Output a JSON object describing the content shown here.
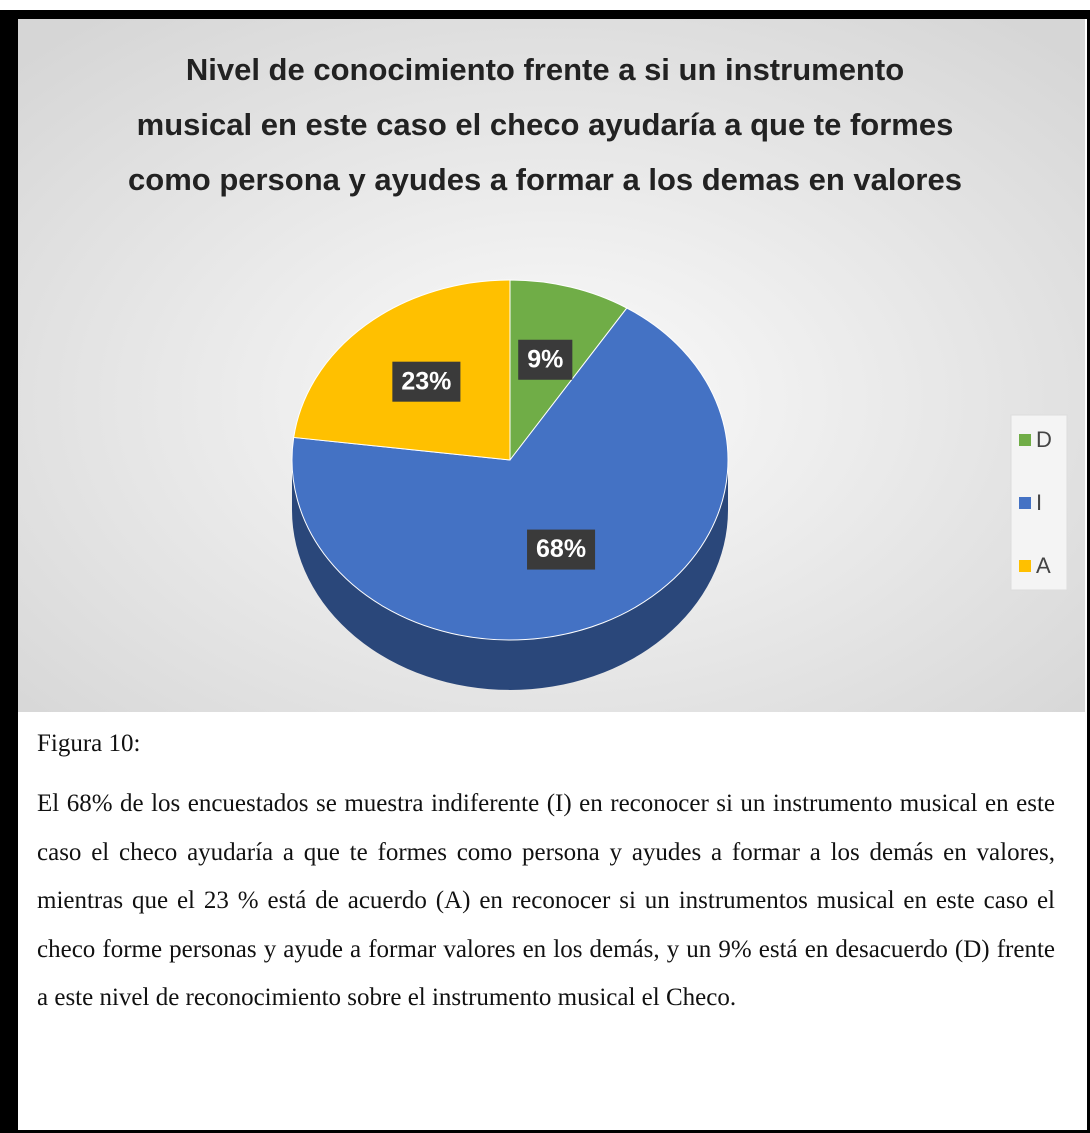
{
  "chart_data": {
    "type": "pie",
    "title": "Nivel de conocimiento frente a si un instrumento musical en este caso el checo ayudaría a que te formes como persona y ayudes a formar a los demas en valores",
    "categories": [
      "D",
      "I",
      "A"
    ],
    "values": [
      9,
      68,
      23
    ],
    "value_labels": [
      "9%",
      "68%",
      "23%"
    ],
    "colors": [
      "#70ad47",
      "#4472c4",
      "#ffc000"
    ],
    "legend": "right"
  },
  "caption": "Figura 10:",
  "paragraph": "El 68% de los encuestados se muestra indiferente (I) en reconocer si un instrumento musical en este caso el checo ayudaría a que te formes como persona y ayudes a formar a los demás en valores, mientras que el 23 % está de acuerdo (A) en reconocer si un instrumentos musical en este caso el checo forme personas y ayude a formar valores en los demás, y un 9% está en desacuerdo (D) frente a este nivel de reconocimiento sobre el instrumento musical el Checo."
}
